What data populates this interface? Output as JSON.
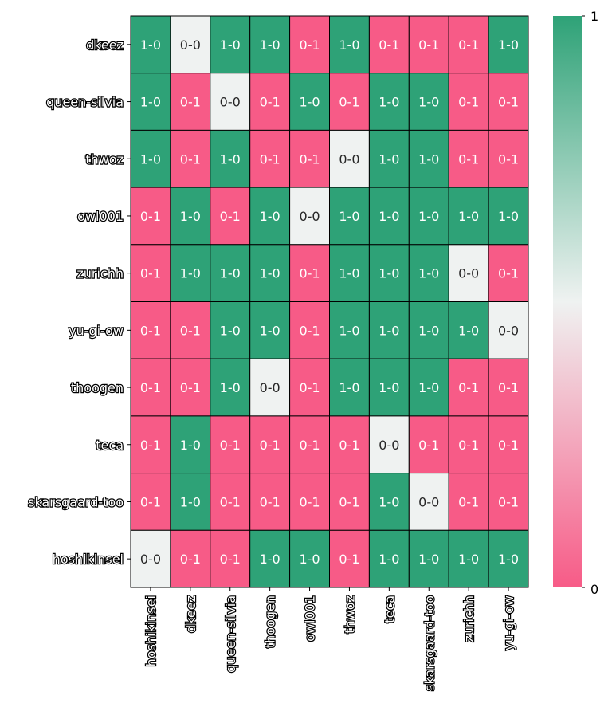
{
  "chart_data": {
    "type": "heatmap",
    "title": "",
    "xlabel": "",
    "ylabel": "",
    "rows": [
      "dkeez",
      "queen-silvia",
      "thwoz",
      "owl001",
      "zurichh",
      "yu-gi-ow",
      "thoogen",
      "teca",
      "skarsgaard-too",
      "hoshikinsei"
    ],
    "columns": [
      "hoshikinsei",
      "dkeez",
      "queen-silvia",
      "thoogen",
      "owl001",
      "thwoz",
      "teca",
      "skarsgaard-too",
      "zurichh",
      "yu-gi-ow"
    ],
    "annotations": [
      [
        "1-0",
        "0-0",
        "1-0",
        "1-0",
        "0-1",
        "1-0",
        "0-1",
        "0-1",
        "0-1",
        "1-0"
      ],
      [
        "1-0",
        "0-1",
        "0-0",
        "0-1",
        "1-0",
        "0-1",
        "1-0",
        "1-0",
        "0-1",
        "0-1"
      ],
      [
        "1-0",
        "0-1",
        "1-0",
        "0-1",
        "0-1",
        "0-0",
        "1-0",
        "1-0",
        "0-1",
        "0-1"
      ],
      [
        "0-1",
        "1-0",
        "0-1",
        "1-0",
        "0-0",
        "1-0",
        "1-0",
        "1-0",
        "1-0",
        "1-0"
      ],
      [
        "0-1",
        "1-0",
        "1-0",
        "1-0",
        "0-1",
        "1-0",
        "1-0",
        "1-0",
        "0-0",
        "0-1"
      ],
      [
        "0-1",
        "0-1",
        "1-0",
        "1-0",
        "0-1",
        "1-0",
        "1-0",
        "1-0",
        "1-0",
        "0-0"
      ],
      [
        "0-1",
        "0-1",
        "1-0",
        "0-0",
        "0-1",
        "1-0",
        "1-0",
        "1-0",
        "0-1",
        "0-1"
      ],
      [
        "0-1",
        "1-0",
        "0-1",
        "0-1",
        "0-1",
        "0-1",
        "0-0",
        "0-1",
        "0-1",
        "0-1"
      ],
      [
        "0-1",
        "1-0",
        "0-1",
        "0-1",
        "0-1",
        "0-1",
        "1-0",
        "0-0",
        "0-1",
        "0-1"
      ],
      [
        "0-0",
        "0-1",
        "0-1",
        "1-0",
        "1-0",
        "0-1",
        "1-0",
        "1-0",
        "1-0",
        "1-0"
      ]
    ],
    "values": [
      [
        1,
        0.5,
        1,
        1,
        0,
        1,
        0,
        0,
        0,
        1
      ],
      [
        1,
        0,
        0.5,
        0,
        1,
        0,
        1,
        1,
        0,
        0
      ],
      [
        1,
        0,
        1,
        0,
        0,
        0.5,
        1,
        1,
        0,
        0
      ],
      [
        0,
        1,
        0,
        1,
        0.5,
        1,
        1,
        1,
        1,
        1
      ],
      [
        0,
        1,
        1,
        1,
        0,
        1,
        1,
        1,
        0.5,
        0
      ],
      [
        0,
        0,
        1,
        1,
        0,
        1,
        1,
        1,
        1,
        0.5
      ],
      [
        0,
        0,
        1,
        0.5,
        0,
        1,
        1,
        1,
        0,
        0
      ],
      [
        0,
        1,
        0,
        0,
        0,
        0,
        0.5,
        0,
        0,
        0
      ],
      [
        0,
        1,
        0,
        0,
        0,
        0,
        1,
        0.5,
        0,
        0
      ],
      [
        0.5,
        0,
        0,
        1,
        1,
        0,
        1,
        1,
        1,
        1
      ]
    ],
    "colorbar": {
      "range": [
        0,
        1
      ],
      "ticks": [
        "0",
        "1"
      ],
      "colors": {
        "low": "#f75b87",
        "mid": "#eff2f1",
        "high": "#2ea277"
      }
    },
    "grid": false,
    "legend": "right colorbar"
  },
  "colors": {
    "text_dark": "#262626",
    "text_light": "#ffffff",
    "cell_border": "#000000"
  }
}
